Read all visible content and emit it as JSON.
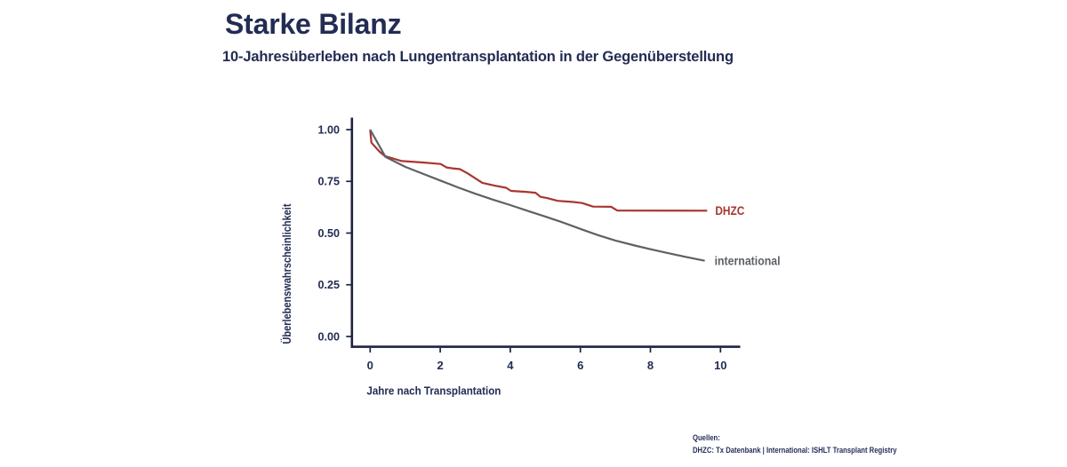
{
  "header": {
    "title": "Starke Bilanz",
    "subtitle": "10-Jahresüberleben nach Lungentransplantation in der Gegenüberstellung"
  },
  "chart_data": {
    "type": "line",
    "title": "10-Jahresüberleben nach Lungentransplantation in der Gegenüberstellung",
    "xlabel": "Jahre nach Transplantation",
    "ylabel": "Überlebenswahrscheinlichkeit",
    "xlim": [
      0,
      10
    ],
    "ylim": [
      0.0,
      1.0
    ],
    "grid": false,
    "legend_position": "end-of-line-labels",
    "x_ticks": [
      {
        "v": 0,
        "label": "0"
      },
      {
        "v": 2,
        "label": "2"
      },
      {
        "v": 4,
        "label": "4"
      },
      {
        "v": 6,
        "label": "6"
      },
      {
        "v": 8,
        "label": "8"
      },
      {
        "v": 10,
        "label": "10"
      }
    ],
    "y_ticks": [
      {
        "v": 0.0,
        "label": "0.00"
      },
      {
        "v": 0.25,
        "label": "0.25"
      },
      {
        "v": 0.5,
        "label": "0.50"
      },
      {
        "v": 0.75,
        "label": "0.75"
      },
      {
        "v": 1.0,
        "label": "1.00"
      }
    ],
    "series": [
      {
        "name": "DHZC",
        "color": "#a8362f",
        "points": [
          [
            0,
            1.0
          ],
          [
            0.035,
            0.937
          ],
          [
            0.27,
            0.893
          ],
          [
            0.42,
            0.872
          ],
          [
            0.9,
            0.848
          ],
          [
            1.5,
            0.841
          ],
          [
            2.01,
            0.834
          ],
          [
            2.18,
            0.817
          ],
          [
            2.35,
            0.813
          ],
          [
            2.56,
            0.809
          ],
          [
            2.78,
            0.789
          ],
          [
            3.2,
            0.743
          ],
          [
            3.55,
            0.729
          ],
          [
            3.88,
            0.719
          ],
          [
            4.02,
            0.704
          ],
          [
            4.45,
            0.699
          ],
          [
            4.72,
            0.695
          ],
          [
            4.86,
            0.675
          ],
          [
            5.05,
            0.669
          ],
          [
            5.35,
            0.656
          ],
          [
            5.8,
            0.65
          ],
          [
            6.05,
            0.645
          ],
          [
            6.36,
            0.628
          ],
          [
            6.88,
            0.627
          ],
          [
            7.05,
            0.609
          ],
          [
            9.62,
            0.608
          ]
        ]
      },
      {
        "name": "international",
        "color": "#5d6166",
        "points": [
          [
            0,
            1.0
          ],
          [
            0.44,
            0.868
          ],
          [
            1.0,
            0.82
          ],
          [
            1.5,
            0.787
          ],
          [
            2.0,
            0.754
          ],
          [
            2.5,
            0.721
          ],
          [
            3.0,
            0.69
          ],
          [
            3.5,
            0.662
          ],
          [
            4.0,
            0.635
          ],
          [
            4.5,
            0.607
          ],
          [
            5.0,
            0.58
          ],
          [
            5.5,
            0.551
          ],
          [
            6.0,
            0.52
          ],
          [
            6.5,
            0.49
          ],
          [
            7.0,
            0.464
          ],
          [
            7.55,
            0.44
          ],
          [
            8.0,
            0.422
          ],
          [
            8.5,
            0.403
          ],
          [
            9.0,
            0.385
          ],
          [
            9.55,
            0.366
          ]
        ]
      }
    ]
  },
  "footer": {
    "sources_label": "Quellen:",
    "sources_text": "DHZC: Tx Datenbank | International: ISHLT Transplant Registry"
  },
  "colors": {
    "navy": "#232c54",
    "axis": "#1c2340",
    "dhzc_red": "#a8362f",
    "international_gray": "#5d6166",
    "background": "#ffffff"
  }
}
